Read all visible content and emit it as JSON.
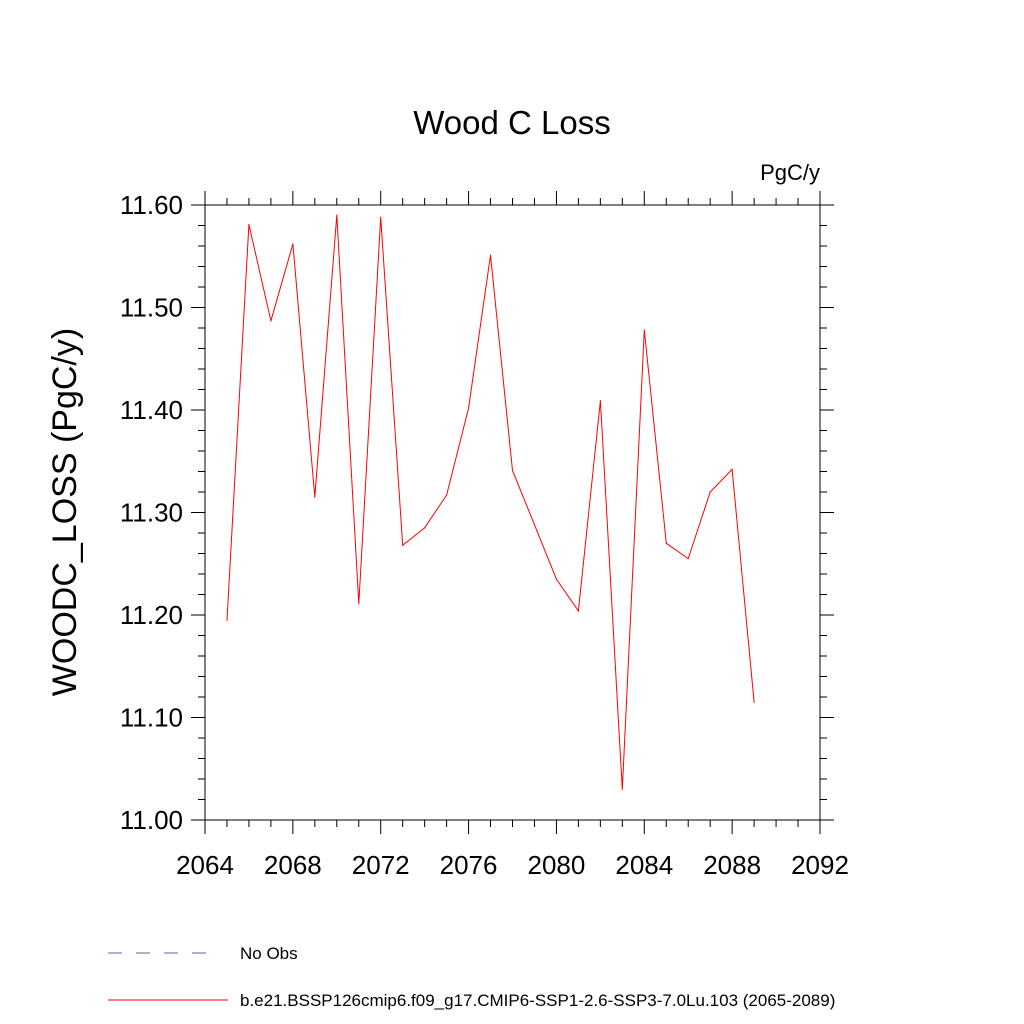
{
  "chart_data": {
    "type": "line",
    "title": "Wood C Loss",
    "units_label": "PgC/y",
    "ylabel": "WOODC_LOSS  (PgC/y)",
    "xlabel": "",
    "xlim": [
      2064,
      2092
    ],
    "ylim": [
      11.0,
      11.6
    ],
    "x_ticks": [
      "2064",
      "2068",
      "2072",
      "2076",
      "2080",
      "2084",
      "2088",
      "2092"
    ],
    "y_ticks": [
      "11.00",
      "11.10",
      "11.20",
      "11.30",
      "11.40",
      "11.50",
      "11.60"
    ],
    "grid": false,
    "series": [
      {
        "name": "b.e21.BSSP126cmip6.f09_g17.CMIP6-SSP1-2.6-SSP3-7.0Lu.103 (2065-2089)",
        "color": "#ff0000",
        "x": [
          2065,
          2066,
          2067,
          2068,
          2069,
          2070,
          2071,
          2072,
          2073,
          2074,
          2075,
          2076,
          2077,
          2078,
          2079,
          2080,
          2081,
          2082,
          2083,
          2084,
          2085,
          2086,
          2087,
          2088,
          2089
        ],
        "y": [
          11.195,
          11.581,
          11.487,
          11.562,
          11.315,
          11.59,
          11.211,
          11.588,
          11.268,
          11.285,
          11.317,
          11.402,
          11.551,
          11.341,
          11.288,
          11.235,
          11.204,
          11.409,
          11.03,
          11.478,
          11.27,
          11.255,
          11.32,
          11.342,
          11.115
        ]
      }
    ]
  },
  "legend": [
    {
      "label": "No Obs",
      "color": "#6e5fa6",
      "dashed": true
    },
    {
      "label": "b.e21.BSSP126cmip6.f09_g17.CMIP6-SSP1-2.6-SSP3-7.0Lu.103 (2065-2089)",
      "color": "#ff0000",
      "dashed": false
    }
  ]
}
